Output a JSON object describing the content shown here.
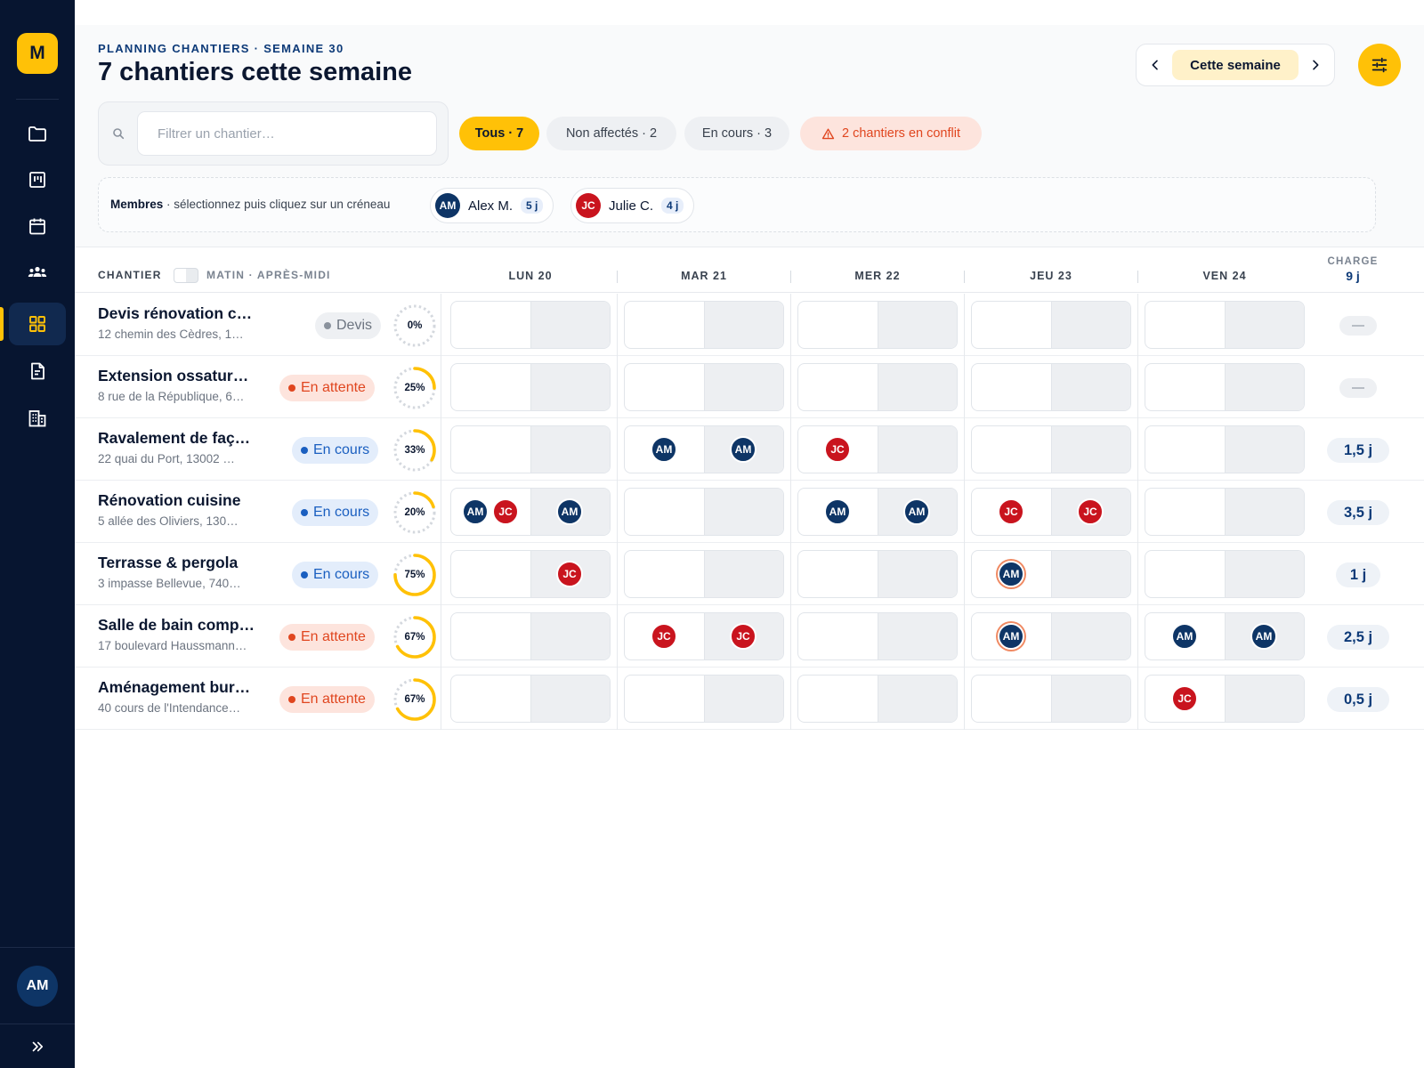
{
  "sidebar": {
    "logo": "M",
    "items": [
      {
        "icon": "folder-icon"
      },
      {
        "icon": "kanban-icon"
      },
      {
        "icon": "calendar-icon"
      },
      {
        "icon": "team-icon"
      },
      {
        "icon": "grid-icon",
        "active": true
      },
      {
        "icon": "document-icon"
      },
      {
        "icon": "building-icon"
      }
    ],
    "user_initials": "AM",
    "expand_icon": "double-chevron-right-icon"
  },
  "header": {
    "eyebrow": "PLANNING CHANTIERS · SEMAINE 30",
    "title": "7 chantiers cette semaine",
    "week_label": "Cette semaine"
  },
  "search": {
    "placeholder": "Filtrer un chantier…",
    "value": ""
  },
  "filters": {
    "all": "Tous · 7",
    "unassigned": "Non affectés · 2",
    "in_progress": "En cours · 3",
    "conflict": "2 chantiers en conflit"
  },
  "members": {
    "label_bold": "Membres",
    "label_rest": " · sélectionnez puis cliquez sur un créneau",
    "list": [
      {
        "initials": "AM",
        "name": "Alex M.",
        "days": "5 j",
        "color": "#0e3566"
      },
      {
        "initials": "JC",
        "name": "Julie C.",
        "days": "4 j",
        "color": "#c9141e"
      }
    ]
  },
  "grid": {
    "col_chantier": "CHANTIER",
    "col_slots": "MATIN · APRÈS-MIDI",
    "days": [
      "LUN 20",
      "MAR 21",
      "MER 22",
      "JEU 23",
      "VEN 24"
    ],
    "charge_label": "CHARGE",
    "charge_total": "9 j"
  },
  "colors": {
    "accent": "#ffc107",
    "navy": "#071530",
    "am": "#0e3566",
    "jc": "#c9141e",
    "conflict": "#e0461f"
  },
  "rows": [
    {
      "name": "Devis rénovation c…",
      "address": "12 chemin des Cèdres, 1…",
      "status": "Devis",
      "status_kind": "devis",
      "progress_label": "0%",
      "progress": 0,
      "charge": "",
      "slots": [
        [
          [],
          []
        ],
        [
          [],
          []
        ],
        [
          [],
          []
        ],
        [
          [],
          []
        ],
        [
          [],
          []
        ]
      ]
    },
    {
      "name": "Extension ossatur…",
      "address": "8 rue de la République, 6…",
      "status": "En attente",
      "status_kind": "attente",
      "progress_label": "25%",
      "progress": 0.25,
      "charge": "",
      "slots": [
        [
          [],
          []
        ],
        [
          [],
          []
        ],
        [
          [],
          []
        ],
        [
          [],
          []
        ],
        [
          [],
          []
        ]
      ]
    },
    {
      "name": "Ravalement de faç…",
      "address": "22 quai du Port, 13002 …",
      "status": "En cours",
      "status_kind": "cours",
      "progress_label": "33%",
      "progress": 0.33,
      "charge": "1,5 j",
      "slots": [
        [
          [],
          []
        ],
        [
          [
            "AM"
          ],
          [
            "AM"
          ]
        ],
        [
          [
            "JC"
          ],
          []
        ],
        [
          [],
          []
        ],
        [
          [],
          []
        ]
      ]
    },
    {
      "name": "Rénovation cuisine",
      "address": "5 allée des Oliviers, 130…",
      "status": "En cours",
      "status_kind": "cours",
      "progress_label": "20%",
      "progress": 0.2,
      "charge": "3,5 j",
      "slots": [
        [
          [
            "AM",
            "JC"
          ],
          [
            "AM"
          ]
        ],
        [
          [],
          []
        ],
        [
          [
            "AM"
          ],
          [
            "AM"
          ]
        ],
        [
          [
            "JC"
          ],
          [
            "JC"
          ]
        ],
        [
          [],
          []
        ]
      ]
    },
    {
      "name": "Terrasse & pergola",
      "address": "3 impasse Bellevue, 740…",
      "status": "En cours",
      "status_kind": "cours",
      "progress_label": "75%",
      "progress": 0.75,
      "charge": "1 j",
      "slots": [
        [
          [],
          [
            "JC"
          ]
        ],
        [
          [],
          []
        ],
        [
          [],
          []
        ],
        [
          [
            "AM!"
          ],
          []
        ],
        [
          [],
          []
        ]
      ]
    },
    {
      "name": "Salle de bain comp…",
      "address": "17 boulevard Haussmann…",
      "status": "En attente",
      "status_kind": "attente",
      "progress_label": "67%",
      "progress": 0.67,
      "charge": "2,5 j",
      "slots": [
        [
          [],
          []
        ],
        [
          [
            "JC"
          ],
          [
            "JC"
          ]
        ],
        [
          [],
          []
        ],
        [
          [
            "AM!"
          ],
          []
        ],
        [
          [
            "AM"
          ],
          [
            "AM"
          ]
        ]
      ]
    },
    {
      "name": "Aménagement bur…",
      "address": "40 cours de l'Intendance…",
      "status": "En attente",
      "status_kind": "attente",
      "progress_label": "67%",
      "progress": 0.67,
      "charge": "0,5 j",
      "slots": [
        [
          [],
          []
        ],
        [
          [],
          []
        ],
        [
          [],
          []
        ],
        [
          [],
          []
        ],
        [
          [
            "JC"
          ],
          []
        ]
      ]
    }
  ]
}
